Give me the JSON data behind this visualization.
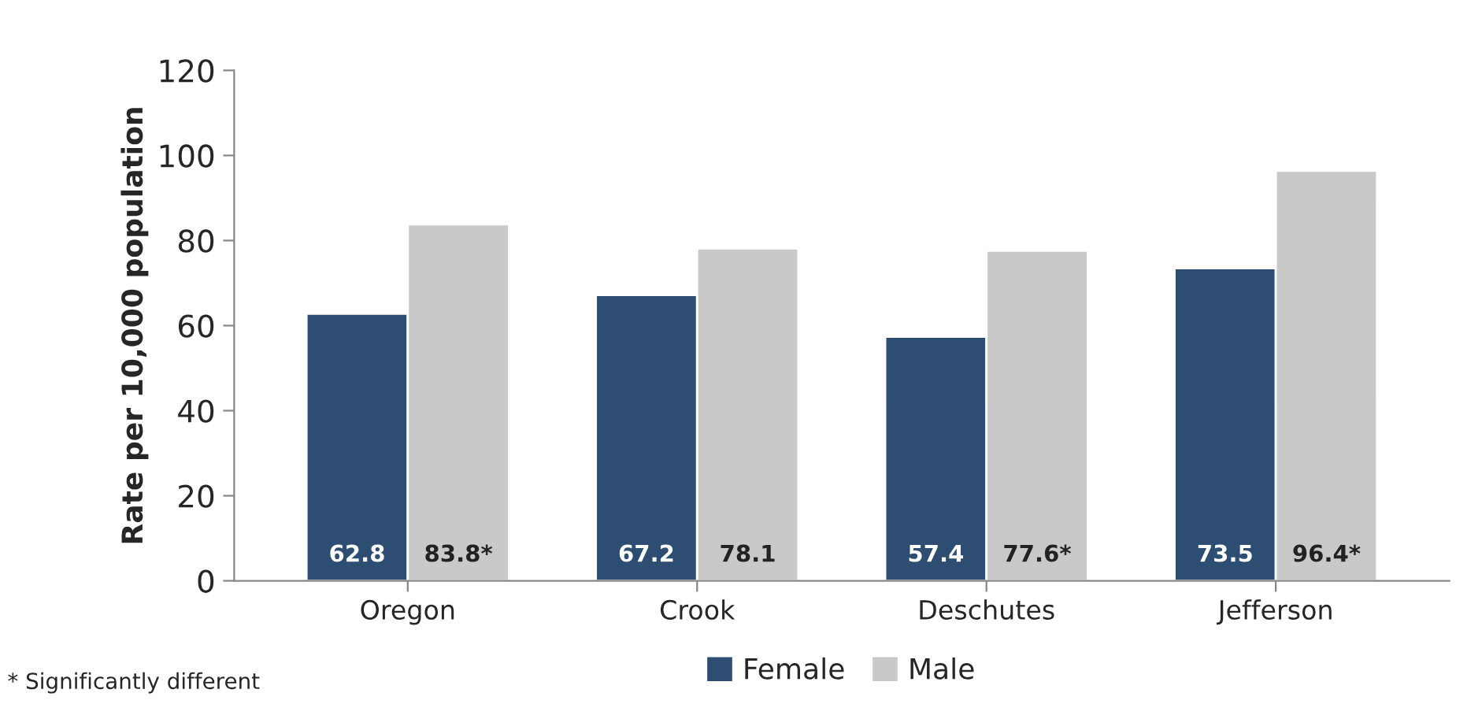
{
  "chart_data": {
    "type": "bar",
    "ylabel": "Rate per 10,000 population",
    "categories": [
      "Oregon",
      "Crook",
      "Deschutes",
      "Jefferson"
    ],
    "series": [
      {
        "name": "Female",
        "color": "#2e4d72",
        "values": [
          62.8,
          67.2,
          57.4,
          73.5
        ],
        "value_labels": [
          "62.8",
          "67.2",
          "57.4",
          "73.5"
        ]
      },
      {
        "name": "Male",
        "color": "#c9c9c9",
        "values": [
          83.8,
          78.1,
          77.6,
          96.4
        ],
        "value_labels": [
          "83.8*",
          "78.1",
          "77.6*",
          "96.4*"
        ]
      }
    ],
    "ylim": [
      0,
      120
    ],
    "yticks": [
      0,
      20,
      40,
      60,
      80,
      100,
      120
    ],
    "grid": false,
    "legend": "bottom",
    "annotations": [
      "* Significantly different"
    ]
  }
}
